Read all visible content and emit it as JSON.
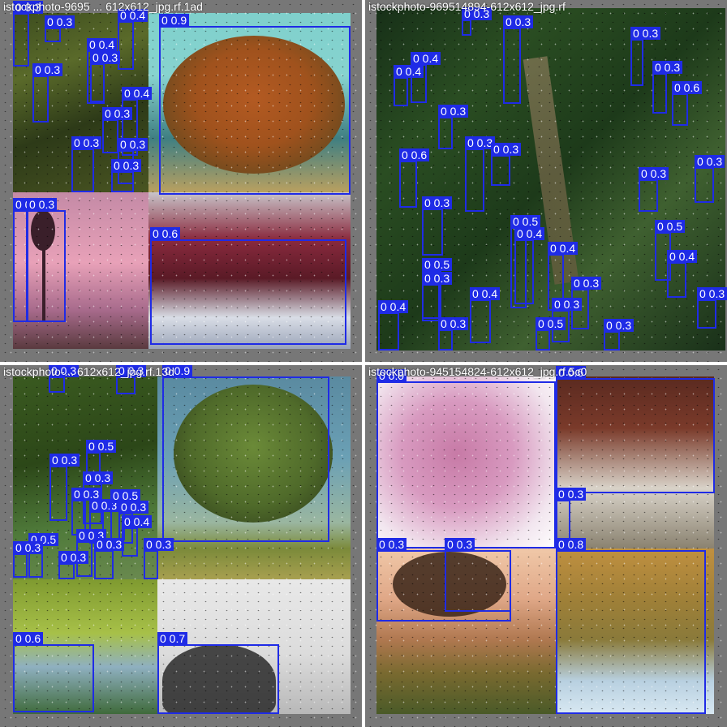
{
  "tiles": [
    {
      "filename": "istockphoto-9695 ... 612x612_jpg.rf.1ad",
      "detections": [
        {
          "label": "0 0.3"
        },
        {
          "label": "0 0.3"
        },
        {
          "label": "0 0.4"
        },
        {
          "label": "0 0.9"
        },
        {
          "label": "0 0.4"
        },
        {
          "label": "0 0.3"
        },
        {
          "label": "0 0.3"
        },
        {
          "label": "0 0.4"
        },
        {
          "label": "0 0.3"
        },
        {
          "label": "0 0.3"
        },
        {
          "label": "0 0.3"
        },
        {
          "label": "0 0.3"
        },
        {
          "label": "0 0.3"
        },
        {
          "label": "0 0.3"
        },
        {
          "label": "0 0.6"
        }
      ]
    },
    {
      "filename": "istockphoto-969514894-612x612_jpg.rf",
      "detections": [
        {
          "label": "0 0.3"
        },
        {
          "label": "0 0.3"
        },
        {
          "label": "0 0.4"
        },
        {
          "label": "0 0.4"
        },
        {
          "label": "0 0.3"
        },
        {
          "label": "0 0.3"
        },
        {
          "label": "0 0.6"
        },
        {
          "label": "0 0.3"
        },
        {
          "label": "0 0.3"
        },
        {
          "label": "0 0.6"
        },
        {
          "label": "0 0.3"
        },
        {
          "label": "0 0.3"
        },
        {
          "label": "0 0.3"
        },
        {
          "label": "0 0.3"
        },
        {
          "label": "0 0.5"
        },
        {
          "label": "0 0.4"
        },
        {
          "label": "0 0.4"
        },
        {
          "label": "0 0.5"
        },
        {
          "label": "0 0.5"
        },
        {
          "label": "0 0.4"
        },
        {
          "label": "0 0.3"
        },
        {
          "label": "0 0.4"
        },
        {
          "label": "0 0.4"
        },
        {
          "label": "0 0.3"
        },
        {
          "label": "0 0.3"
        },
        {
          "label": "0 0.3"
        },
        {
          "label": "0 0.5"
        },
        {
          "label": "0 0.3"
        },
        {
          "label": "0 0.3"
        }
      ]
    },
    {
      "filename": "istockphoto-... 612x612_jpg.rf.13d",
      "detections": [
        {
          "label": "0 0.3"
        },
        {
          "label": "0 0.3"
        },
        {
          "label": "0 0.9"
        },
        {
          "label": "0 0.5"
        },
        {
          "label": "0 0.3"
        },
        {
          "label": "0 0.3"
        },
        {
          "label": "0 0.3"
        },
        {
          "label": "0 0.3"
        },
        {
          "label": "0 0.5"
        },
        {
          "label": "0 0.3"
        },
        {
          "label": "0 0.4"
        },
        {
          "label": "0 0.3"
        },
        {
          "label": "0 0.5"
        },
        {
          "label": "0 0.3"
        },
        {
          "label": "0 0.3"
        },
        {
          "label": "0 0.3"
        },
        {
          "label": "0 0.3"
        },
        {
          "label": "0 0.6"
        },
        {
          "label": "0 0.7"
        }
      ]
    },
    {
      "filename": "istockphoto-945154824-612x612_jpg.rf.5c0",
      "detections": [
        {
          "label": "0 0.9"
        },
        {
          "label": "0 0.6"
        },
        {
          "label": "0 0.3"
        },
        {
          "label": "0 0.3"
        },
        {
          "label": "0 0.3"
        },
        {
          "label": "0 0.8"
        }
      ]
    }
  ]
}
